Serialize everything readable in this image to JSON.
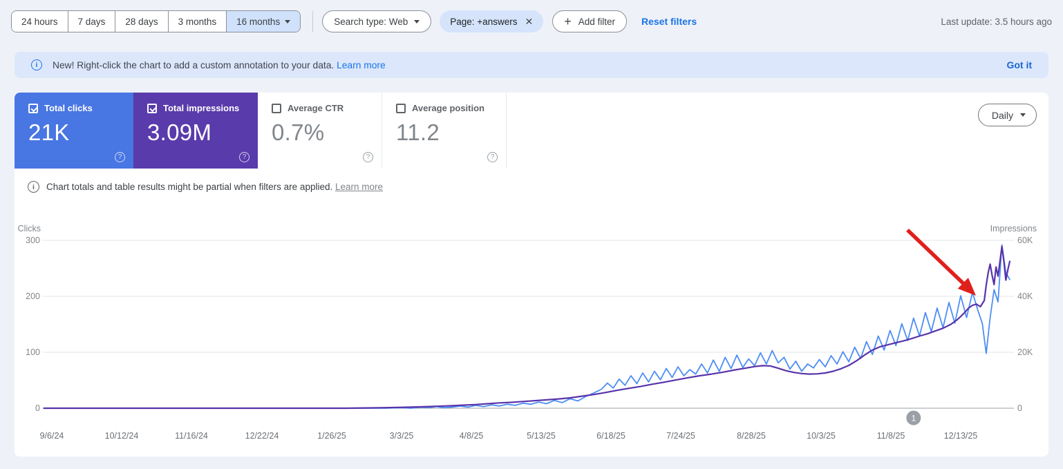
{
  "toolbar": {
    "date_ranges": [
      {
        "label": "24 hours",
        "selected": false
      },
      {
        "label": "7 days",
        "selected": false
      },
      {
        "label": "28 days",
        "selected": false
      },
      {
        "label": "3 months",
        "selected": false
      },
      {
        "label": "16 months",
        "selected": true
      }
    ],
    "search_type_label": "Search type: Web",
    "filter_chip_label": "Page: +answers",
    "add_filter_label": "Add filter",
    "reset_filters_label": "Reset filters",
    "last_update": "Last update: 3.5 hours ago"
  },
  "banner": {
    "text": "New! Right-click the chart to add a custom annotation to your data.",
    "link_label": "Learn more",
    "dismiss_label": "Got it"
  },
  "metrics": [
    {
      "label": "Total clicks",
      "value": "21K",
      "checked": true,
      "color": "#4876e2"
    },
    {
      "label": "Total impressions",
      "value": "3.09M",
      "checked": true,
      "color": "#5a3bab"
    },
    {
      "label": "Average CTR",
      "value": "0.7%",
      "checked": false,
      "color": "#ffffff"
    },
    {
      "label": "Average position",
      "value": "11.2",
      "checked": false,
      "color": "#ffffff"
    }
  ],
  "granularity": {
    "label": "Daily"
  },
  "note": {
    "text": "Chart totals and table results might be partial when filters are applied.",
    "link_label": "Learn more"
  },
  "chart_data": {
    "type": "line",
    "x_unit": "days since 2024-09-06 (daily granularity, 16 months)",
    "x_tick_labels": [
      "9/6/24",
      "10/12/24",
      "11/16/24",
      "12/22/24",
      "1/26/25",
      "3/3/25",
      "4/8/25",
      "5/13/25",
      "6/18/25",
      "7/24/25",
      "8/28/25",
      "10/3/25",
      "11/8/25",
      "12/13/25"
    ],
    "x_tick_days": [
      0,
      36,
      71,
      107,
      142,
      178,
      214,
      249,
      285,
      321,
      356,
      392,
      428,
      463
    ],
    "left_axis": {
      "title": "Clicks",
      "tick_labels": [
        "300",
        "200",
        "100",
        "0"
      ],
      "ticks": [
        300,
        200,
        100,
        0
      ],
      "max": 300
    },
    "right_axis": {
      "title": "Impressions",
      "tick_labels": [
        "60K",
        "40K",
        "20K",
        "0"
      ],
      "ticks": [
        60000,
        40000,
        20000,
        0
      ],
      "max": 60000
    },
    "grid": true,
    "legend": "none",
    "series": [
      {
        "name": "Total clicks",
        "axis": "left",
        "color": "#4c8df5",
        "width": 1.8,
        "points": [
          [
            -4,
            0
          ],
          [
            0,
            0
          ],
          [
            20,
            0
          ],
          [
            40,
            0
          ],
          [
            60,
            0
          ],
          [
            80,
            0
          ],
          [
            100,
            0
          ],
          [
            120,
            0
          ],
          [
            140,
            0
          ],
          [
            150,
            0
          ],
          [
            160,
            0
          ],
          [
            170,
            0
          ],
          [
            178,
            1
          ],
          [
            183,
            0
          ],
          [
            188,
            2
          ],
          [
            192,
            1
          ],
          [
            196,
            3
          ],
          [
            200,
            1
          ],
          [
            204,
            2
          ],
          [
            208,
            4
          ],
          [
            212,
            2
          ],
          [
            216,
            5
          ],
          [
            220,
            3
          ],
          [
            224,
            6
          ],
          [
            228,
            4
          ],
          [
            232,
            7
          ],
          [
            236,
            5
          ],
          [
            240,
            9
          ],
          [
            244,
            7
          ],
          [
            248,
            11
          ],
          [
            252,
            8
          ],
          [
            256,
            14
          ],
          [
            260,
            10
          ],
          [
            264,
            17
          ],
          [
            268,
            13
          ],
          [
            272,
            21
          ],
          [
            276,
            27
          ],
          [
            280,
            34
          ],
          [
            283,
            45
          ],
          [
            286,
            36
          ],
          [
            289,
            52
          ],
          [
            292,
            41
          ],
          [
            295,
            58
          ],
          [
            298,
            44
          ],
          [
            301,
            63
          ],
          [
            304,
            47
          ],
          [
            307,
            66
          ],
          [
            310,
            51
          ],
          [
            313,
            71
          ],
          [
            316,
            55
          ],
          [
            319,
            74
          ],
          [
            322,
            58
          ],
          [
            325,
            69
          ],
          [
            328,
            61
          ],
          [
            331,
            79
          ],
          [
            334,
            63
          ],
          [
            337,
            86
          ],
          [
            340,
            66
          ],
          [
            343,
            91
          ],
          [
            346,
            71
          ],
          [
            349,
            95
          ],
          [
            352,
            73
          ],
          [
            355,
            88
          ],
          [
            358,
            76
          ],
          [
            361,
            99
          ],
          [
            364,
            79
          ],
          [
            367,
            103
          ],
          [
            370,
            81
          ],
          [
            373,
            91
          ],
          [
            376,
            70
          ],
          [
            379,
            84
          ],
          [
            382,
            66
          ],
          [
            385,
            79
          ],
          [
            388,
            72
          ],
          [
            391,
            87
          ],
          [
            394,
            74
          ],
          [
            397,
            94
          ],
          [
            400,
            79
          ],
          [
            403,
            101
          ],
          [
            406,
            83
          ],
          [
            409,
            109
          ],
          [
            412,
            89
          ],
          [
            415,
            119
          ],
          [
            418,
            96
          ],
          [
            421,
            129
          ],
          [
            424,
            104
          ],
          [
            427,
            139
          ],
          [
            430,
            112
          ],
          [
            433,
            151
          ],
          [
            436,
            121
          ],
          [
            439,
            161
          ],
          [
            442,
            129
          ],
          [
            445,
            171
          ],
          [
            448,
            137
          ],
          [
            451,
            179
          ],
          [
            454,
            144
          ],
          [
            457,
            189
          ],
          [
            460,
            152
          ],
          [
            463,
            201
          ],
          [
            466,
            162
          ],
          [
            469,
            207
          ],
          [
            472,
            172
          ],
          [
            474,
            152
          ],
          [
            476,
            98
          ],
          [
            478,
            162
          ],
          [
            480,
            212
          ],
          [
            482,
            190
          ],
          [
            484,
            292
          ],
          [
            486,
            242
          ],
          [
            488,
            230
          ]
        ]
      },
      {
        "name": "Total impressions",
        "axis": "right",
        "color": "#5733aa",
        "width": 2.2,
        "points": [
          [
            -4,
            0
          ],
          [
            0,
            0
          ],
          [
            40,
            0
          ],
          [
            80,
            0
          ],
          [
            120,
            0
          ],
          [
            150,
            0
          ],
          [
            160,
            100
          ],
          [
            170,
            200
          ],
          [
            180,
            350
          ],
          [
            188,
            500
          ],
          [
            196,
            700
          ],
          [
            204,
            900
          ],
          [
            210,
            1100
          ],
          [
            216,
            1300
          ],
          [
            222,
            1600
          ],
          [
            228,
            1900
          ],
          [
            234,
            2100
          ],
          [
            240,
            2400
          ],
          [
            246,
            2700
          ],
          [
            252,
            3000
          ],
          [
            258,
            3300
          ],
          [
            264,
            3700
          ],
          [
            270,
            4300
          ],
          [
            276,
            4900
          ],
          [
            282,
            5600
          ],
          [
            288,
            6400
          ],
          [
            294,
            7100
          ],
          [
            300,
            7800
          ],
          [
            306,
            8600
          ],
          [
            312,
            9300
          ],
          [
            318,
            10100
          ],
          [
            324,
            10900
          ],
          [
            330,
            11600
          ],
          [
            336,
            12200
          ],
          [
            342,
            12900
          ],
          [
            348,
            13700
          ],
          [
            354,
            14400
          ],
          [
            358,
            14900
          ],
          [
            362,
            15200
          ],
          [
            366,
            15100
          ],
          [
            370,
            14300
          ],
          [
            374,
            13400
          ],
          [
            378,
            12800
          ],
          [
            382,
            12400
          ],
          [
            386,
            12200
          ],
          [
            390,
            12300
          ],
          [
            394,
            12600
          ],
          [
            398,
            13200
          ],
          [
            402,
            14100
          ],
          [
            406,
            15300
          ],
          [
            410,
            17000
          ],
          [
            414,
            19000
          ],
          [
            418,
            20800
          ],
          [
            422,
            22000
          ],
          [
            426,
            22700
          ],
          [
            430,
            23400
          ],
          [
            434,
            24100
          ],
          [
            438,
            24900
          ],
          [
            442,
            25800
          ],
          [
            446,
            26600
          ],
          [
            450,
            27600
          ],
          [
            454,
            28600
          ],
          [
            458,
            30000
          ],
          [
            461,
            31500
          ],
          [
            463,
            32800
          ],
          [
            465,
            34200
          ],
          [
            467,
            35800
          ],
          [
            469,
            36800
          ],
          [
            471,
            37200
          ],
          [
            473,
            36300
          ],
          [
            475,
            38500
          ],
          [
            476,
            44000
          ],
          [
            477,
            48500
          ],
          [
            478,
            51500
          ],
          [
            479,
            47500
          ],
          [
            480,
            44200
          ],
          [
            481,
            50500
          ],
          [
            482,
            47200
          ],
          [
            483,
            52500
          ],
          [
            484,
            57800
          ],
          [
            485,
            52500
          ],
          [
            486,
            45800
          ],
          [
            487,
            49500
          ],
          [
            488,
            52500
          ]
        ]
      }
    ],
    "annotations": {
      "marker": {
        "label": "1",
        "day": 439
      },
      "arrow": {
        "description": "red arrow pointing at the late-December spike"
      }
    }
  }
}
